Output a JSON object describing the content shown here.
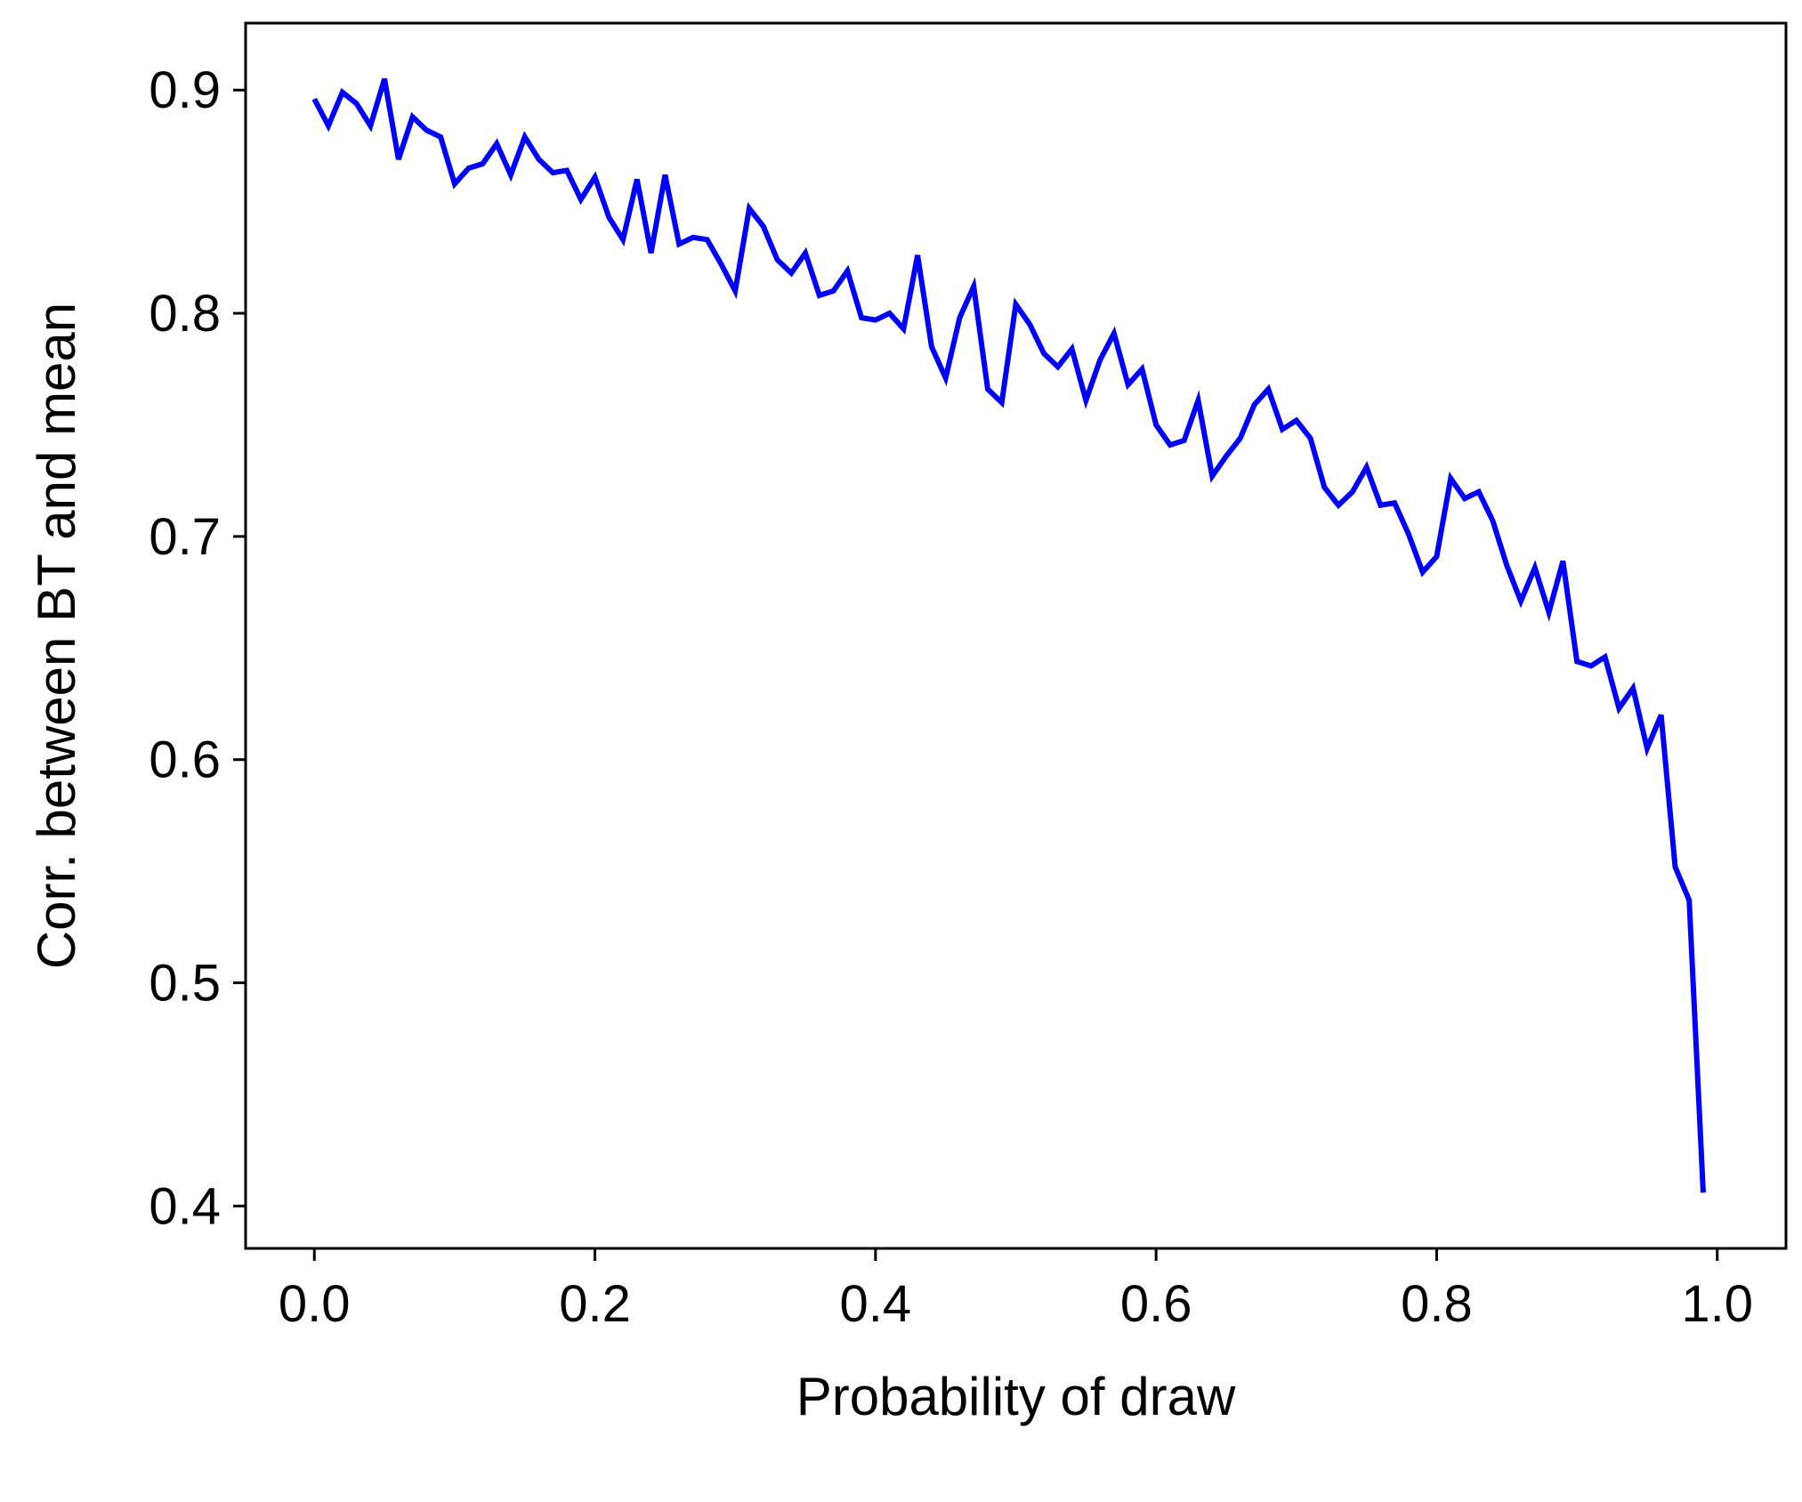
{
  "chart_data": {
    "type": "line",
    "title": "",
    "xlabel": "Probability of draw",
    "ylabel": "Corr. between BT and mean",
    "xlim": [
      -0.049,
      1.049
    ],
    "ylim": [
      0.381,
      0.93
    ],
    "xticks": [
      0.0,
      0.2,
      0.4,
      0.6,
      0.8,
      1.0
    ],
    "xtick_labels": [
      "0.0",
      "0.2",
      "0.4",
      "0.6",
      "0.8",
      "1.0"
    ],
    "yticks": [
      0.4,
      0.5,
      0.6,
      0.7,
      0.8,
      0.9
    ],
    "ytick_labels": [
      "0.4",
      "0.5",
      "0.6",
      "0.7",
      "0.8",
      "0.9"
    ],
    "grid": false,
    "legend": "none",
    "series": [
      {
        "color": "#0000ff",
        "x": [
          0.0,
          0.01,
          0.02,
          0.03,
          0.04,
          0.05,
          0.06,
          0.07,
          0.08,
          0.09,
          0.1,
          0.11,
          0.12,
          0.13,
          0.14,
          0.15,
          0.16,
          0.17,
          0.18,
          0.19,
          0.2,
          0.21,
          0.22,
          0.23,
          0.24,
          0.25,
          0.26,
          0.27,
          0.28,
          0.29,
          0.3,
          0.31,
          0.32,
          0.33,
          0.34,
          0.35,
          0.36,
          0.37,
          0.38,
          0.39,
          0.4,
          0.41,
          0.42,
          0.43,
          0.44,
          0.45,
          0.46,
          0.47,
          0.48,
          0.49,
          0.5,
          0.51,
          0.52,
          0.53,
          0.54,
          0.55,
          0.56,
          0.57,
          0.58,
          0.59,
          0.6,
          0.61,
          0.62,
          0.63,
          0.64,
          0.65,
          0.66,
          0.67,
          0.68,
          0.69,
          0.7,
          0.71,
          0.72,
          0.73,
          0.74,
          0.75,
          0.76,
          0.77,
          0.78,
          0.79,
          0.8,
          0.81,
          0.82,
          0.83,
          0.84,
          0.85,
          0.86,
          0.87,
          0.88,
          0.89,
          0.9,
          0.91,
          0.92,
          0.93,
          0.94,
          0.95,
          0.96,
          0.97,
          0.98,
          0.99
        ],
        "y": [
          0.896,
          0.884,
          0.899,
          0.894,
          0.884,
          0.905,
          0.869,
          0.888,
          0.882,
          0.879,
          0.858,
          0.865,
          0.867,
          0.876,
          0.862,
          0.879,
          0.869,
          0.863,
          0.864,
          0.851,
          0.861,
          0.843,
          0.833,
          0.86,
          0.827,
          0.862,
          0.831,
          0.834,
          0.833,
          0.822,
          0.81,
          0.847,
          0.839,
          0.824,
          0.818,
          0.827,
          0.808,
          0.81,
          0.819,
          0.798,
          0.797,
          0.8,
          0.793,
          0.826,
          0.785,
          0.771,
          0.798,
          0.812,
          0.766,
          0.76,
          0.804,
          0.795,
          0.782,
          0.776,
          0.784,
          0.761,
          0.779,
          0.791,
          0.768,
          0.775,
          0.75,
          0.741,
          0.743,
          0.761,
          0.727,
          0.736,
          0.744,
          0.759,
          0.766,
          0.748,
          0.752,
          0.744,
          0.722,
          0.714,
          0.72,
          0.731,
          0.714,
          0.715,
          0.701,
          0.684,
          0.691,
          0.726,
          0.717,
          0.72,
          0.707,
          0.687,
          0.671,
          0.686,
          0.666,
          0.689,
          0.644,
          0.642,
          0.646,
          0.623,
          0.632,
          0.605,
          0.62,
          0.552,
          0.537,
          0.406
        ]
      }
    ]
  }
}
